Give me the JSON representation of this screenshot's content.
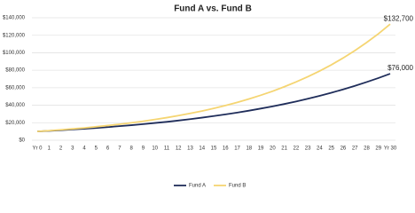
{
  "chart_data": {
    "type": "line",
    "title": "Fund A vs. Fund B",
    "categories": [
      "Yr 0",
      "1",
      "2",
      "3",
      "4",
      "5",
      "6",
      "7",
      "8",
      "9",
      "10",
      "11",
      "12",
      "13",
      "14",
      "15",
      "16",
      "17",
      "18",
      "19",
      "20",
      "21",
      "22",
      "23",
      "24",
      "25",
      "26",
      "27",
      "28",
      "29",
      "Yr 30"
    ],
    "series": [
      {
        "name": "Fund A",
        "color": "#1f2d5a",
        "values": [
          10000,
          10700,
          11400,
          12300,
          13100,
          14000,
          15000,
          16100,
          17200,
          18400,
          19700,
          21000,
          22500,
          24100,
          25800,
          27600,
          29500,
          31600,
          33800,
          36200,
          38700,
          41400,
          44300,
          47400,
          50700,
          54300,
          58100,
          62100,
          66500,
          71100,
          76000
        ],
        "value_labels": [
          null,
          null,
          null,
          null,
          null,
          null,
          null,
          null,
          null,
          null,
          null,
          null,
          null,
          null,
          null,
          null,
          null,
          null,
          null,
          null,
          null,
          null,
          null,
          null,
          null,
          null,
          null,
          null,
          null,
          null,
          "$76,000"
        ]
      },
      {
        "name": "Fund B",
        "color": "#f5d572",
        "values": [
          10000,
          10900,
          11900,
          13000,
          14100,
          15400,
          16800,
          18300,
          19900,
          21700,
          23700,
          25800,
          28100,
          30700,
          33400,
          36400,
          39700,
          43300,
          47200,
          51400,
          56000,
          61100,
          66600,
          72600,
          79100,
          86200,
          94000,
          102500,
          111700,
          121700,
          132700
        ],
        "value_labels": [
          null,
          null,
          null,
          null,
          null,
          null,
          null,
          null,
          null,
          null,
          null,
          null,
          null,
          null,
          null,
          null,
          null,
          null,
          null,
          null,
          null,
          null,
          null,
          null,
          null,
          null,
          null,
          null,
          null,
          null,
          "$132,700"
        ]
      }
    ],
    "ylim": [
      0,
      140000
    ],
    "yticks": [
      {
        "value": 0,
        "label": "$0"
      },
      {
        "value": 20000,
        "label": "$20,000"
      },
      {
        "value": 40000,
        "label": "$40,000"
      },
      {
        "value": 60000,
        "label": "$60,000"
      },
      {
        "value": 80000,
        "label": "$80,000"
      },
      {
        "value": 100000,
        "label": "$100,000"
      },
      {
        "value": 120000,
        "label": "$120,000"
      },
      {
        "value": 140000,
        "label": "$140,000"
      }
    ],
    "grid": true,
    "legend": "bottom"
  }
}
